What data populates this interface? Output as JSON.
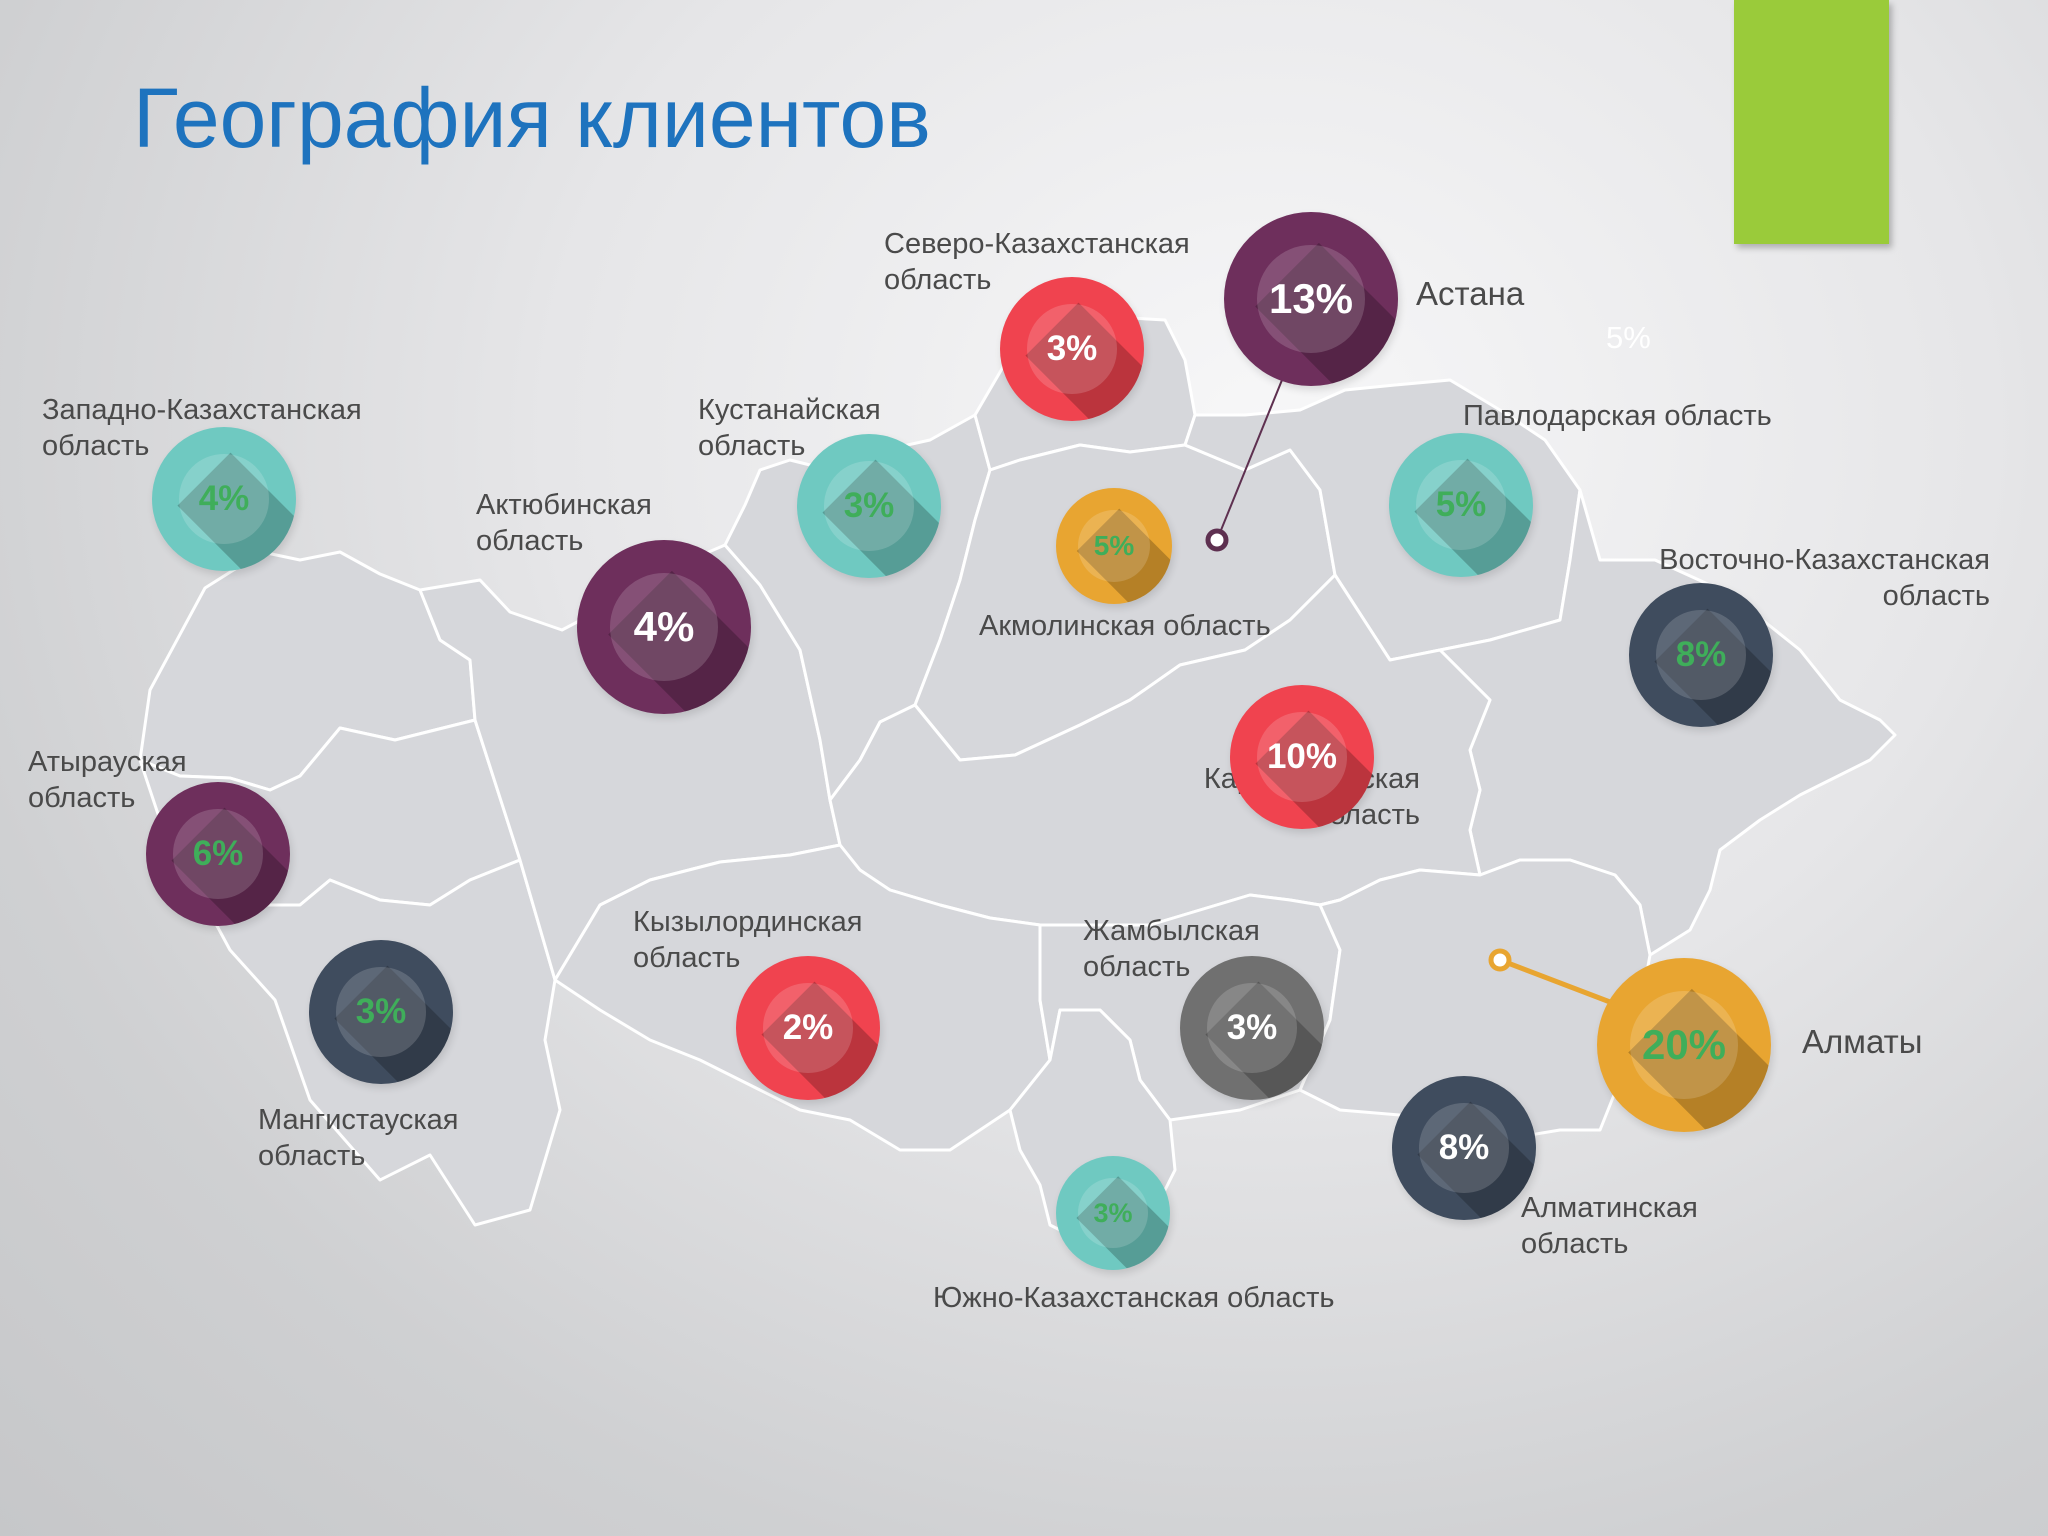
{
  "title": "География клиентов",
  "colors": {
    "title": "#1e73be",
    "accent_bar": "#9acb3a",
    "map_fill": "#d6d7db",
    "map_border": "#ffffff",
    "pointer_astana": "#5e3050",
    "pointer_almaty": "#e8a531",
    "teal": "#6fc9c1",
    "purple": "#6e2f5c",
    "red": "#f0434f",
    "orange": "#e8a531",
    "slate": "#3f4c5e",
    "gray": "#707070",
    "pct_green": "#3fae5a",
    "pct_white": "#ffffff"
  },
  "stray_note": "5%",
  "regions": [
    {
      "id": "sko",
      "label_lines": [
        "Северо-Казахстанская",
        "область"
      ],
      "percent": 3,
      "percent_text": "3%",
      "color": "red",
      "text_color": "white"
    },
    {
      "id": "astana",
      "label_lines": [
        "Астана"
      ],
      "percent": 13,
      "percent_text": "13%",
      "color": "purple",
      "text_color": "white",
      "is_city": true
    },
    {
      "id": "zko",
      "label_lines": [
        "Западно-Казахстанская",
        "область"
      ],
      "percent": 4,
      "percent_text": "4%",
      "color": "teal",
      "text_color": "green"
    },
    {
      "id": "kost",
      "label_lines": [
        "Кустанайская",
        "область"
      ],
      "percent": 3,
      "percent_text": "3%",
      "color": "teal",
      "text_color": "green"
    },
    {
      "id": "pvl",
      "label_lines": [
        "Павлодарская область"
      ],
      "percent": 5,
      "percent_text": "5%",
      "color": "teal",
      "text_color": "green"
    },
    {
      "id": "akt",
      "label_lines": [
        "Актюбинская",
        "область"
      ],
      "percent": 4,
      "percent_text": "4%",
      "color": "purple",
      "text_color": "white"
    },
    {
      "id": "akm",
      "label_lines": [
        "Акмолинская область"
      ],
      "percent": 5,
      "percent_text": "5%",
      "color": "orange",
      "text_color": "green"
    },
    {
      "id": "vko",
      "label_lines": [
        "Восточно-Казахстанская",
        "область"
      ],
      "percent": 8,
      "percent_text": "8%",
      "color": "slate",
      "text_color": "green"
    },
    {
      "id": "atr",
      "label_lines": [
        "Атырауская",
        "область"
      ],
      "percent": 6,
      "percent_text": "6%",
      "color": "purple",
      "text_color": "green"
    },
    {
      "id": "kar",
      "label_lines": [
        "Карагандинская",
        "область"
      ],
      "percent": 10,
      "percent_text": "10%",
      "color": "red",
      "text_color": "white"
    },
    {
      "id": "kzo",
      "label_lines": [
        "Кызылординская",
        "область"
      ],
      "percent": 2,
      "percent_text": "2%",
      "color": "red",
      "text_color": "white"
    },
    {
      "id": "zhm",
      "label_lines": [
        "Жамбылская",
        "область"
      ],
      "percent": 3,
      "percent_text": "3%",
      "color": "gray",
      "text_color": "white"
    },
    {
      "id": "man",
      "label_lines": [
        "Мангистауская",
        "область"
      ],
      "percent": 3,
      "percent_text": "3%",
      "color": "slate",
      "text_color": "green"
    },
    {
      "id": "almaty",
      "label_lines": [
        "Алматы"
      ],
      "percent": 20,
      "percent_text": "20%",
      "color": "orange",
      "text_color": "green",
      "is_city": true
    },
    {
      "id": "alm_obl",
      "label_lines": [
        "Алматинская",
        "область"
      ],
      "percent": 8,
      "percent_text": "8%",
      "color": "slate",
      "text_color": "white"
    },
    {
      "id": "yuko",
      "label_lines": [
        "Южно-Казахстанская область"
      ],
      "percent": 3,
      "percent_text": "3%",
      "color": "teal",
      "text_color": "green"
    }
  ]
}
